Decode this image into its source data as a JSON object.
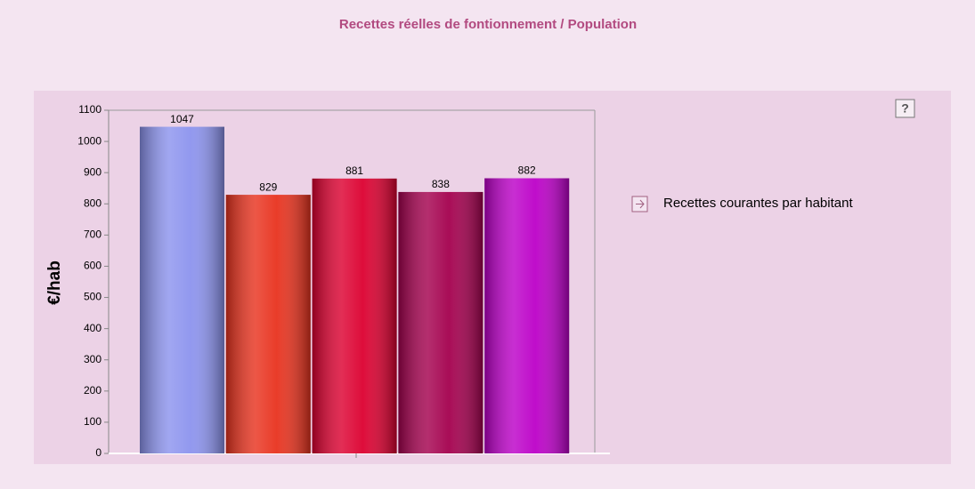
{
  "chart_data": {
    "type": "bar",
    "title": "Recettes réelles de fontionnement / Population",
    "ylabel": "€/hab",
    "categories": [
      null,
      null,
      null,
      null,
      null
    ],
    "series": [
      {
        "name": "Recettes courantes par habitant",
        "values": [
          1047,
          829,
          881,
          838,
          882
        ],
        "colors": [
          "#8c93ee",
          "#e8321e",
          "#dc0030",
          "#a4004e",
          "#bc00c8"
        ]
      }
    ],
    "ylim": [
      0,
      1100
    ],
    "yticks": [
      0,
      100,
      200,
      300,
      400,
      500,
      600,
      700,
      800,
      900,
      1000,
      1100
    ],
    "help": "?"
  }
}
